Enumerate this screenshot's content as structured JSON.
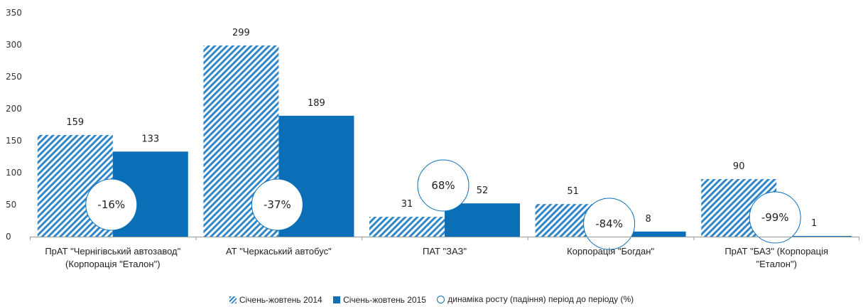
{
  "chart_data": {
    "type": "bar",
    "categories": [
      [
        "ПрАТ \"Чернігівський автозавод\"",
        "(Корпорація \"Еталон\")"
      ],
      [
        "АТ \"Черкаський автобус\""
      ],
      [
        "ПАТ \"ЗАЗ\""
      ],
      [
        "Корпорація \"Богдан\""
      ],
      [
        "ПрАТ \"БАЗ\" (Корпорація",
        "\"Еталон\")"
      ]
    ],
    "series": [
      {
        "name": "Січень-жовтень 2014",
        "values": [
          159,
          299,
          31,
          51,
          90
        ],
        "color": "#2F86C8",
        "pattern": "hatch"
      },
      {
        "name": "Січень-жовтень 2015",
        "values": [
          133,
          189,
          52,
          8,
          1
        ],
        "color": "#0B6FB8",
        "pattern": "solid"
      }
    ],
    "dynamics": {
      "name": "динаміка росту (падіння) період до періоду (%)",
      "labels": [
        "-16%",
        "-37%",
        "68%",
        "-84%",
        "-99%"
      ],
      "level": [
        50,
        50,
        80,
        20,
        30
      ]
    },
    "ylim": [
      0,
      350
    ],
    "yticks": [
      0,
      50,
      100,
      150,
      200,
      250,
      300,
      350
    ],
    "grid": false,
    "legend_position": "bottom"
  }
}
